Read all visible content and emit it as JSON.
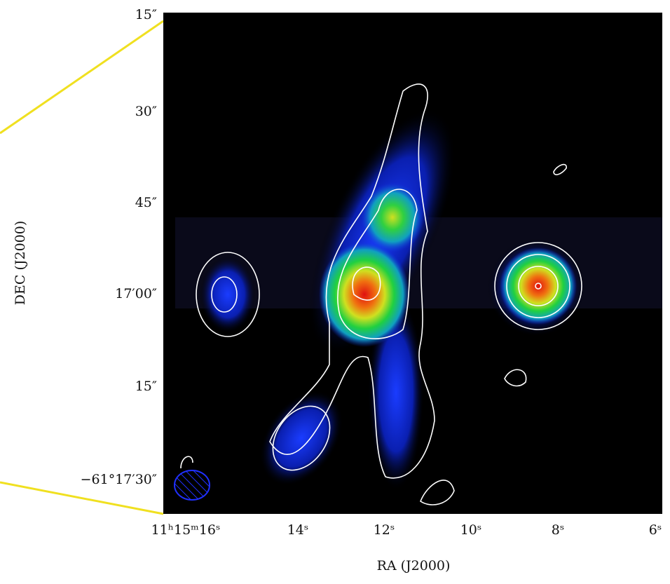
{
  "axes": {
    "x_label": "RA (J2000)",
    "y_label": "DEC (J2000)",
    "x_ticks": [
      "11ʰ15ᵐ16ˢ",
      "14ˢ",
      "12ˢ",
      "10ˢ",
      "8ˢ",
      "6ˢ"
    ],
    "y_ticks": [
      "15″",
      "30″",
      "45″",
      "17′00″",
      "15″",
      "−61°17′30″"
    ]
  }
}
